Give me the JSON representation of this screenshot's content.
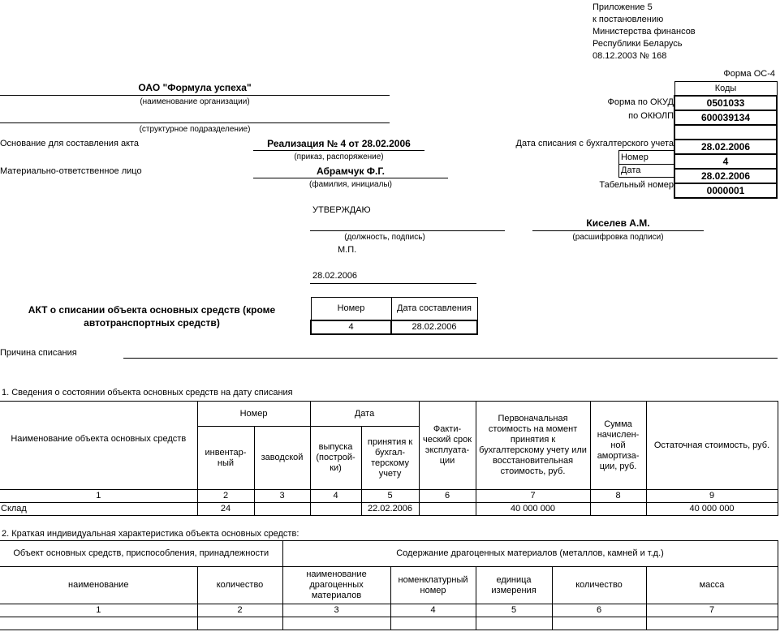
{
  "appendix": [
    "Приложение 5",
    "к постановлению",
    "Министерства финансов",
    "Республики Беларусь",
    "08.12.2003 № 168"
  ],
  "form_name": "Форма ОС-4",
  "codes": {
    "header": "Коды",
    "okud_label": "Форма по ОКУД",
    "okud": "0501033",
    "okulp_label": "по ОКЮЛП",
    "okulp": "600039134",
    "writeoff_date_label": "Дата списания с бухгалтерского учета",
    "writeoff_date": "28.02.2006",
    "number_label": "Номер",
    "number": "4",
    "date_label": "Дата",
    "date": "28.02.2006",
    "tab_label": "Табельный номер",
    "tab": "0000001"
  },
  "org": {
    "name": "ОАО \"Формула успеха\"",
    "name_caption": "(наименование организации)",
    "division_caption": "(структурное подразделение)"
  },
  "basis": {
    "label": "Основание для составления акта",
    "value": "Реализация № 4 от 28.02.2006",
    "caption": "(приказ, распоряжение)"
  },
  "responsible": {
    "label": "Материально-ответственное лицо",
    "value": "Абрамчук Ф.Г.",
    "caption": "(фамилия, инициалы)"
  },
  "approve": {
    "label": "УТВЕРЖДАЮ",
    "position_caption": "(должность, подпись)",
    "name": "Киселев А.М.",
    "name_caption": "(расшифровка подписи)",
    "stamp": "М.П.",
    "date": "28.02.2006"
  },
  "act": {
    "title_line1": "АКТ о списании объекта основных средств (кроме",
    "title_line2": "автотранспортных средств)",
    "number_header": "Номер",
    "date_header": "Дата составления",
    "number": "4",
    "date": "28.02.2006"
  },
  "reason_label": "Причина списания",
  "section1": {
    "title": "1. Сведения о состоянии объекта основных средств на дату списания",
    "headers": {
      "name": "Наименование объекта основных средств",
      "number": "Номер",
      "date": "Дата",
      "inv": "инвентар-ный",
      "factory": "заводской",
      "release": "выпуска (построй-ки)",
      "accept": "принятия к бухгал-терскому учету",
      "term": "Факти-ческий срок эксплуата-ции",
      "initial": "Первоначальная стоимость на момент принятия к бухгалтерскому учету или восстановительная стоимость, руб.",
      "amort": "Сумма начислен-ной амортиза-ции, руб.",
      "residual": "Остаточная стоимость, руб."
    },
    "col_numbers": [
      "1",
      "2",
      "3",
      "4",
      "5",
      "6",
      "7",
      "8",
      "9"
    ],
    "rows": [
      [
        "Склад",
        "24",
        "",
        "",
        "22.02.2006",
        "",
        "40 000 000",
        "",
        "40 000 000"
      ]
    ]
  },
  "section2": {
    "title": "2. Краткая индивидуальная характеристика объекта основных средств:",
    "headers": {
      "object": "Объект основных средств, приспособления, принадлежности",
      "content": "Содержание драгоценных материалов (металлов, камней и т.д.)",
      "name": "наименование",
      "qty": "количество",
      "mat_name": "наименование драгоценных материалов",
      "nom": "номенклатурный номер",
      "unit": "единица измерения",
      "qty2": "количество",
      "mass": "масса"
    },
    "col_numbers": [
      "1",
      "2",
      "3",
      "4",
      "5",
      "6",
      "7"
    ],
    "rows": [
      [
        "",
        "",
        "",
        "",
        "",
        "",
        ""
      ]
    ]
  }
}
